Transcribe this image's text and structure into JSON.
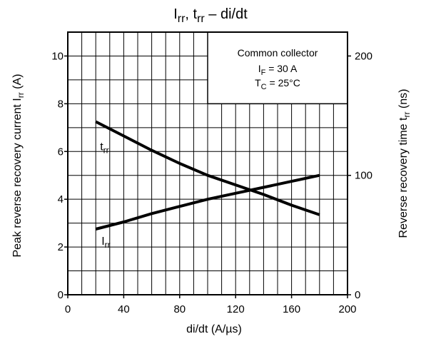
{
  "chart_data": {
    "type": "line",
    "title": "Irr, trr – di/dt",
    "title_parts": {
      "main1": "I",
      "sub1": "rr",
      "sep": ", t",
      "sub2": "rr",
      "tail": " – di/dt"
    },
    "xlabel": "di/dt    (A/µs)",
    "ylabel_left": {
      "text": "Peak reverse recovery current",
      "symbol_main": "I",
      "symbol_sub": "rr",
      "unit": "(A)"
    },
    "ylabel_right": {
      "text": "Reverse recovery time",
      "symbol_main": "t",
      "symbol_sub": "rr",
      "unit": "(ns)"
    },
    "xlim": [
      0,
      200
    ],
    "ylim_left": [
      0,
      11
    ],
    "ylim_right": [
      0,
      220
    ],
    "x_ticks": [
      0,
      40,
      80,
      120,
      160,
      200
    ],
    "y_ticks_left": [
      0,
      2,
      4,
      6,
      8,
      10
    ],
    "y_ticks_right": [
      0,
      100,
      200
    ],
    "grid": true,
    "series": [
      {
        "name": "trr",
        "axis": "right",
        "label_main": "t",
        "label_sub": "rr",
        "x": [
          20,
          40,
          60,
          80,
          100,
          120,
          140,
          160,
          180
        ],
        "y": [
          145,
          133,
          121,
          110,
          100,
          92,
          84,
          75,
          67
        ]
      },
      {
        "name": "Irr",
        "axis": "left",
        "label_main": "I",
        "label_sub": "rr",
        "x": [
          20,
          40,
          60,
          80,
          100,
          120,
          140,
          160,
          180
        ],
        "y": [
          2.75,
          3.05,
          3.4,
          3.7,
          4.0,
          4.25,
          4.5,
          4.75,
          5.0
        ]
      }
    ],
    "legend_box": {
      "line1": "Common collector",
      "line2_main": "I",
      "line2_sub": "F",
      "line2_tail": " = 30 A",
      "line3_main": "T",
      "line3_sub": "C",
      "line3_tail": " = 25°C"
    }
  }
}
